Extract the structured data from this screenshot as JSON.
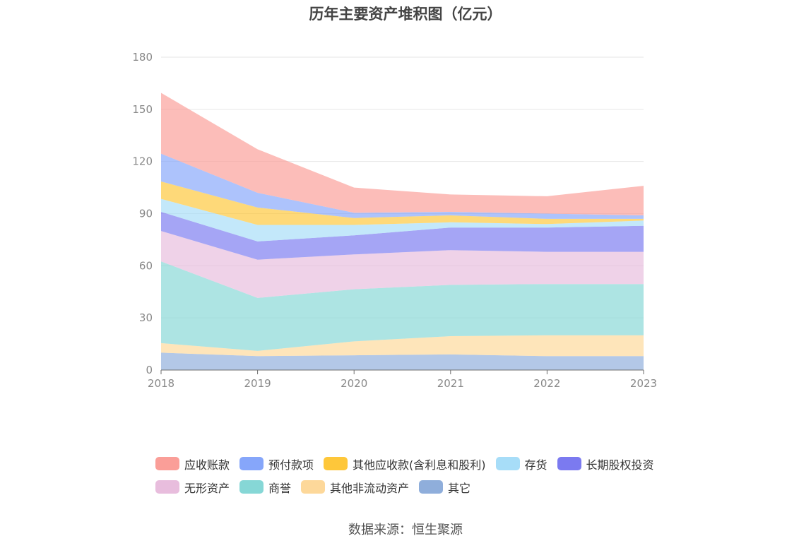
{
  "chart_data": {
    "type": "area",
    "stacked": true,
    "title": "历年主要资产堆积图（亿元）",
    "x": [
      "2018",
      "2019",
      "2020",
      "2021",
      "2022",
      "2023"
    ],
    "ylim": [
      0,
      180
    ],
    "yticks": [
      "0",
      "30",
      "60",
      "90",
      "120",
      "150",
      "180"
    ],
    "grid": true,
    "legend_position": "bottom",
    "series": [
      {
        "name": "其它",
        "color": "#8faedb",
        "values": [
          10,
          8,
          8.5,
          9,
          8,
          8
        ]
      },
      {
        "name": "其他非流动资产",
        "color": "#fdd89a",
        "values": [
          5.5,
          3,
          8,
          10.5,
          12,
          12
        ]
      },
      {
        "name": "商誉",
        "color": "#86d7d6",
        "values": [
          47,
          30.5,
          30,
          29.5,
          29.5,
          29.5
        ]
      },
      {
        "name": "无形资产",
        "color": "#e8bddd",
        "values": [
          17.5,
          22,
          20,
          20,
          18.5,
          18.5
        ]
      },
      {
        "name": "长期股权投资",
        "color": "#7b7af0",
        "values": [
          11,
          10.5,
          11,
          13,
          14,
          15
        ]
      },
      {
        "name": "存货",
        "color": "#a7ddf8",
        "values": [
          7.5,
          9.5,
          6,
          3,
          2,
          3
        ]
      },
      {
        "name": "其他应收款(含利息和股利)",
        "color": "#fec73a",
        "values": [
          10,
          10,
          4,
          4,
          3,
          1
        ]
      },
      {
        "name": "预付款项",
        "color": "#86a6fa",
        "values": [
          16,
          8.5,
          3,
          2,
          3,
          2
        ]
      },
      {
        "name": "应收账款",
        "color": "#fa9e98",
        "values": [
          35,
          25,
          14.5,
          10,
          10,
          17
        ]
      }
    ],
    "legend_rows": [
      [
        "应收账款",
        "预付款项",
        "其他应收款(含利息和股利)",
        "存货",
        "长期股权投资"
      ],
      [
        "无形资产",
        "商誉",
        "其他非流动资产",
        "其它"
      ]
    ]
  },
  "source": "数据来源：恒生聚源"
}
